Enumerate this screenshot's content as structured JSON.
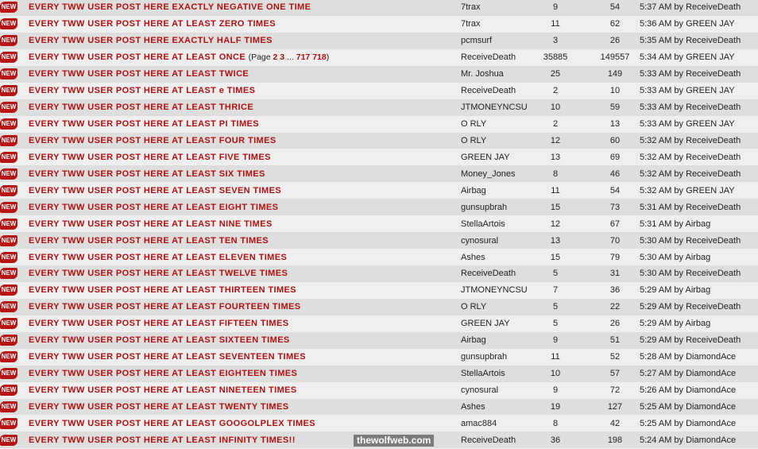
{
  "new_badge": "NEW",
  "watermark": "thewolfweb.com",
  "colors": {
    "title": "#b01010",
    "row_odd": "#dedede",
    "row_even": "#efefef"
  },
  "threads": [
    {
      "title": "EVERY TWW USER POST HERE EXACTLY NEGATIVE ONE TIME",
      "author": "7trax",
      "replies": "9",
      "views": "54",
      "last_post": "5:37 AM by ReceiveDeath"
    },
    {
      "title": "EVERY TWW USER POST HERE AT LEAST ZERO TIMES",
      "author": "7trax",
      "replies": "11",
      "views": "62",
      "last_post": "5:36 AM by GREEN JAY"
    },
    {
      "title": "EVERY TWW USER POST HERE EXACTLY HALF TIMES",
      "author": "pcmsurf",
      "replies": "3",
      "views": "26",
      "last_post": "5:35 AM by ReceiveDeath"
    },
    {
      "title": "EVERY TWW USER POST HERE AT LEAST ONCE",
      "pages": {
        "prefix": "(Page",
        "p1": "2",
        "p2": "3",
        "ellipsis": "...",
        "p3": "717",
        "p4": "718",
        "suffix": ")"
      },
      "author": "ReceiveDeath",
      "replies": "35885",
      "views": "149557",
      "last_post": "5:34 AM by GREEN JAY"
    },
    {
      "title": "EVERY TWW USER POST HERE AT LEAST TWICE",
      "author": "Mr. Joshua",
      "replies": "25",
      "views": "149",
      "last_post": "5:33 AM by ReceiveDeath"
    },
    {
      "title": "EVERY TWW USER POST HERE AT LEAST e TIMES",
      "author": "ReceiveDeath",
      "replies": "2",
      "views": "10",
      "last_post": "5:33 AM by GREEN JAY"
    },
    {
      "title": "EVERY TWW USER POST HERE AT LEAST THRICE",
      "author": "JTMONEYNCSU",
      "replies": "10",
      "views": "59",
      "last_post": "5:33 AM by ReceiveDeath"
    },
    {
      "title": "EVERY TWW USER POST HERE AT LEAST PI TIMES",
      "author": "O RLY",
      "replies": "2",
      "views": "13",
      "last_post": "5:33 AM by GREEN JAY"
    },
    {
      "title": "EVERY TWW USER POST HERE AT LEAST FOUR TIMES",
      "author": "O RLY",
      "replies": "12",
      "views": "60",
      "last_post": "5:32 AM by ReceiveDeath"
    },
    {
      "title": "EVERY TWW USER POST HERE AT LEAST FIVE TIMES",
      "author": "GREEN JAY",
      "replies": "13",
      "views": "69",
      "last_post": "5:32 AM by ReceiveDeath"
    },
    {
      "title": "EVERY TWW USER POST HERE AT LEAST SIX TIMES",
      "author": "Money_Jones",
      "replies": "8",
      "views": "46",
      "last_post": "5:32 AM by ReceiveDeath"
    },
    {
      "title": "EVERY TWW USER POST HERE AT LEAST SEVEN TIMES",
      "author": "Airbag",
      "replies": "11",
      "views": "54",
      "last_post": "5:32 AM by GREEN JAY"
    },
    {
      "title": "EVERY TWW USER POST HERE AT LEAST EIGHT TIMES",
      "author": "gunsupbrah",
      "replies": "15",
      "views": "73",
      "last_post": "5:31 AM by ReceiveDeath"
    },
    {
      "title": "EVERY TWW USER POST HERE AT LEAST NINE TIMES",
      "author": "StellaArtois",
      "replies": "12",
      "views": "67",
      "last_post": "5:31 AM by Airbag"
    },
    {
      "title": "EVERY TWW USER POST HERE AT LEAST TEN TIMES",
      "author": "cynosural",
      "replies": "13",
      "views": "70",
      "last_post": "5:30 AM by ReceiveDeath"
    },
    {
      "title": "EVERY TWW USER POST HERE AT LEAST ELEVEN TIMES",
      "author": "Ashes",
      "replies": "15",
      "views": "79",
      "last_post": "5:30 AM by Airbag"
    },
    {
      "title": "EVERY TWW USER POST HERE AT LEAST TWELVE TIMES",
      "author": "ReceiveDeath",
      "replies": "5",
      "views": "31",
      "last_post": "5:30 AM by ReceiveDeath"
    },
    {
      "title": "EVERY TWW USER POST HERE AT LEAST THIRTEEN TIMES",
      "author": "JTMONEYNCSU",
      "replies": "7",
      "views": "36",
      "last_post": "5:29 AM by Airbag"
    },
    {
      "title": "EVERY TWW USER POST HERE AT LEAST FOURTEEN TIMES",
      "author": "O RLY",
      "replies": "5",
      "views": "22",
      "last_post": "5:29 AM by ReceiveDeath"
    },
    {
      "title": "EVERY TWW USER POST HERE AT LEAST FIFTEEN TIMES",
      "author": "GREEN JAY",
      "replies": "5",
      "views": "26",
      "last_post": "5:29 AM by Airbag"
    },
    {
      "title": "EVERY TWW USER POST HERE AT LEAST SIXTEEN TIMES",
      "author": "Airbag",
      "replies": "9",
      "views": "51",
      "last_post": "5:29 AM by ReceiveDeath"
    },
    {
      "title": "EVERY TWW USER POST HERE AT LEAST SEVENTEEN TIMES",
      "author": "gunsupbrah",
      "replies": "11",
      "views": "52",
      "last_post": "5:28 AM by DiamondAce"
    },
    {
      "title": "EVERY TWW USER POST HERE AT LEAST EIGHTEEN TIMES",
      "author": "StellaArtois",
      "replies": "10",
      "views": "57",
      "last_post": "5:27 AM by DiamondAce"
    },
    {
      "title": "EVERY TWW USER POST HERE AT LEAST NINETEEN TIMES",
      "author": "cynosural",
      "replies": "9",
      "views": "72",
      "last_post": "5:26 AM by DiamondAce"
    },
    {
      "title": "EVERY TWW USER POST HERE AT LEAST TWENTY TIMES",
      "author": "Ashes",
      "replies": "19",
      "views": "127",
      "last_post": "5:25 AM by DiamondAce"
    },
    {
      "title": "EVERY TWW USER POST HERE AT LEAST GOOGOLPLEX TIMES",
      "author": "amac884",
      "replies": "8",
      "views": "42",
      "last_post": "5:25 AM by DiamondAce"
    },
    {
      "title": "EVERY TWW USER POST HERE AT LEAST INFINITY TIMES!!",
      "author": "ReceiveDeath",
      "replies": "36",
      "views": "198",
      "last_post": "5:24 AM by DiamondAce"
    }
  ]
}
